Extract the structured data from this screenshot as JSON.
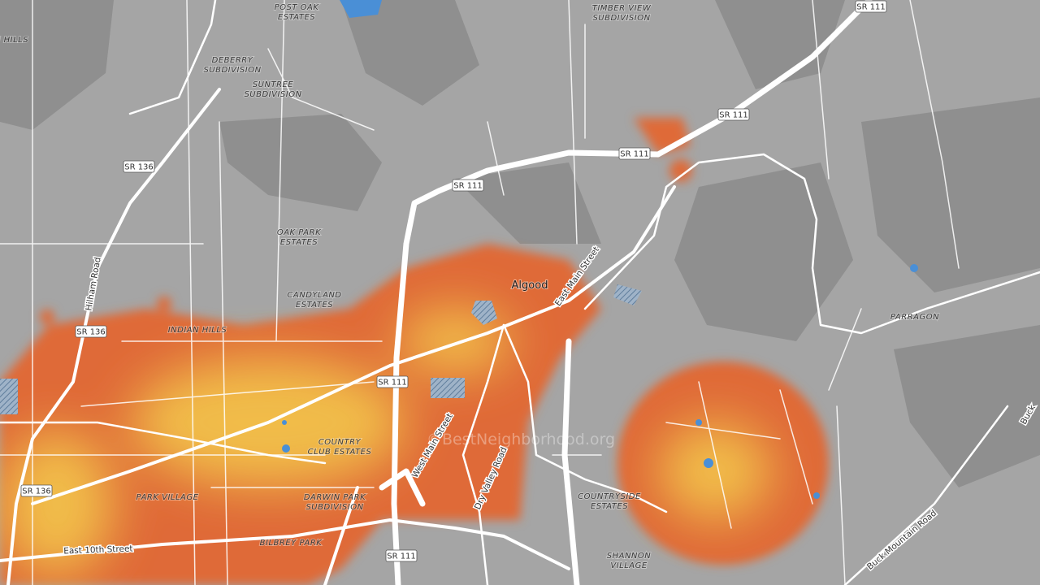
{
  "map": {
    "watermark": "©BestNeighborhood.org",
    "places": [
      {
        "lines": [
          "POST OAK",
          "ESTATES"
        ]
      },
      {
        "lines": [
          "TIMBER VIEW",
          "SUBDIVISION"
        ]
      },
      {
        "lines": [
          "N HILLS"
        ]
      },
      {
        "lines": [
          "DEBERRY",
          "SUBDIVISION"
        ]
      },
      {
        "lines": [
          "SUNTREE",
          "SUBDIVISION"
        ]
      },
      {
        "lines": [
          "OAK PARK",
          "ESTATES"
        ]
      },
      {
        "lines": [
          "CANDYLAND",
          "ESTATES"
        ]
      },
      {
        "lines": [
          "INDIAN HILLS"
        ]
      },
      {
        "lines": [
          "Algood"
        ]
      },
      {
        "lines": [
          "PARRAGON"
        ]
      },
      {
        "lines": [
          "COUNTRY",
          "CLUB ESTATES"
        ]
      },
      {
        "lines": [
          "PARK VILLAGE"
        ]
      },
      {
        "lines": [
          "DARWIN PARK",
          "SUBDIVISION"
        ]
      },
      {
        "lines": [
          "COUNTRYSIDE",
          "ESTATES"
        ]
      },
      {
        "lines": [
          "BILBREY PARK"
        ]
      },
      {
        "lines": [
          "SHANNON",
          "VILLAGE"
        ]
      }
    ],
    "roads": [
      "Hilham Road",
      "East Main Street",
      "West Main Street",
      "Dry Valley Road",
      "East 10th Street",
      "Buck Mountain Road",
      "Buck"
    ],
    "shields": [
      "SR 111",
      "SR 111",
      "SR 111",
      "SR 111",
      "SR 111",
      "SR 111",
      "SR 136",
      "SR 136",
      "SR 136"
    ]
  }
}
